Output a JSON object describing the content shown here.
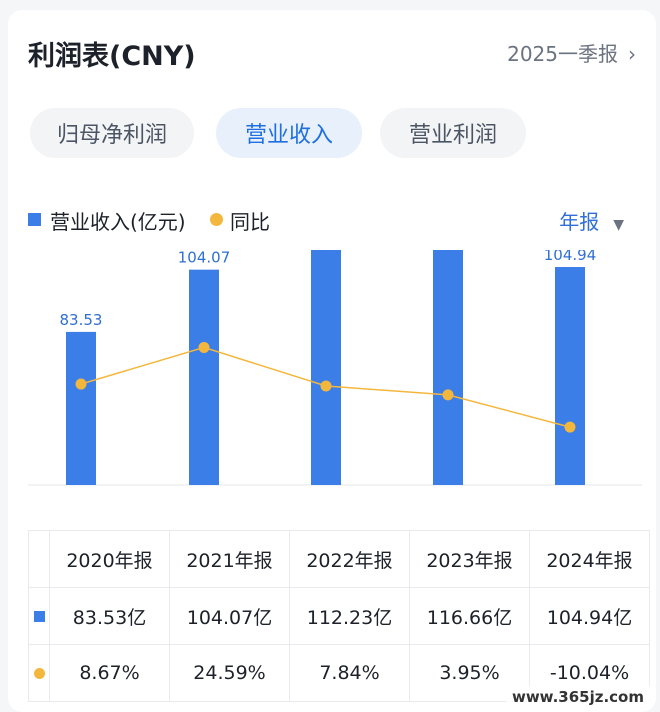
{
  "header": {
    "title": "利润表(CNY)",
    "period": "2025一季报",
    "chevron_icon": "chevron-right-icon"
  },
  "tabs": [
    {
      "label": "归母净利润",
      "active": false
    },
    {
      "label": "营业收入",
      "active": true
    },
    {
      "label": "营业利润",
      "active": false
    }
  ],
  "legend": {
    "bar_label": "营业收入(亿元)",
    "line_label": "同比"
  },
  "period_select": {
    "label": "年报",
    "caret_icon": "caret-down-icon"
  },
  "colors": {
    "bar": "#3b7ee8",
    "line": "#f4b73d",
    "positive": "#e0323a",
    "negative": "#1a9d5a",
    "active_tab": "#1f6fe0"
  },
  "chart_data": {
    "type": "bar",
    "categories": [
      "2020年报",
      "2021年报",
      "2022年报",
      "2023年报",
      "2024年报"
    ],
    "series": [
      {
        "name": "营业收入(亿元)",
        "type": "bar",
        "values": [
          83.53,
          104.07,
          112.23,
          116.66,
          104.94
        ]
      },
      {
        "name": "同比",
        "type": "line",
        "values": [
          8.67,
          24.59,
          7.84,
          3.95,
          -10.04
        ]
      }
    ],
    "data_labels": [
      "83.53",
      "104.07",
      "112.23",
      "116.66",
      "104.94"
    ]
  },
  "table": {
    "headers": [
      "2020年报",
      "2021年报",
      "2022年报",
      "2023年报",
      "2024年报"
    ],
    "revenue_row": [
      "83.53亿",
      "104.07亿",
      "112.23亿",
      "116.66亿",
      "104.94亿"
    ],
    "yoy_row": [
      "8.67%",
      "24.59%",
      "7.84%",
      "3.95%",
      "-10.04%"
    ]
  },
  "watermark": "www.365jz.com"
}
